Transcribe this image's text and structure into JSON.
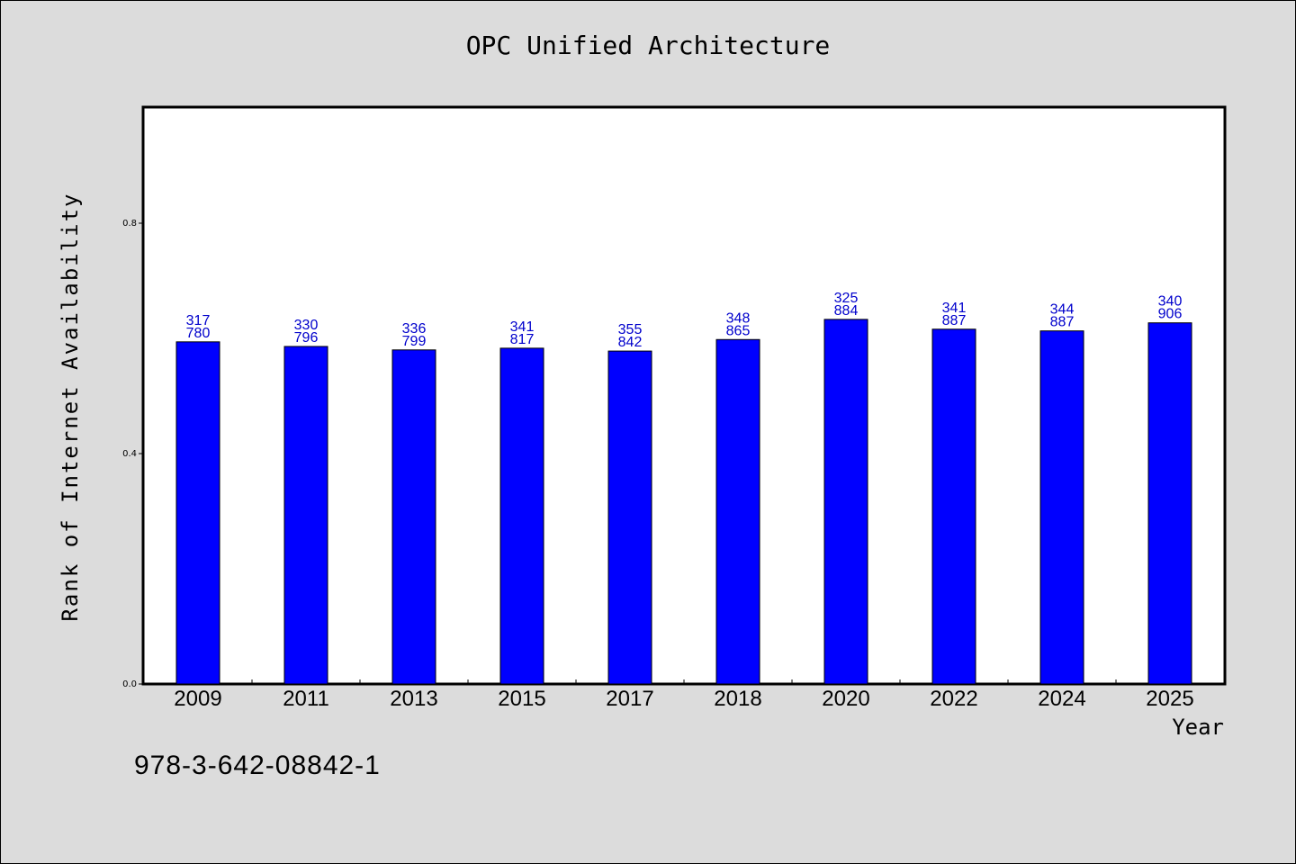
{
  "title": "OPC Unified Architecture",
  "footer_code": "978-3-642-08842-1",
  "colors": {
    "bar": "#0000ff",
    "label": "#0000cc",
    "background": "#dcdcdc",
    "plot": "#ffffff"
  },
  "chart_data": {
    "type": "bar",
    "title": "OPC Unified Architecture",
    "xlabel": "Year",
    "ylabel": "Rank of Internet Availability",
    "categories": [
      "2009",
      "2011",
      "2013",
      "2015",
      "2017",
      "2018",
      "2020",
      "2022",
      "2024",
      "2025"
    ],
    "series": [
      {
        "values": [
          0.594,
          0.586,
          0.58,
          0.583,
          0.578,
          0.598,
          0.633,
          0.616,
          0.613,
          0.627
        ],
        "labels_top": [
          "317",
          "330",
          "336",
          "341",
          "355",
          "348",
          "325",
          "341",
          "344",
          "340"
        ],
        "labels_bottom": [
          "780",
          "796",
          "799",
          "817",
          "842",
          "865",
          "884",
          "887",
          "887",
          "906"
        ]
      }
    ],
    "ylim": [
      0.0,
      1.0
    ],
    "yticks": [
      0.0,
      0.4,
      0.8
    ],
    "ytick_labels": [
      "0.0",
      "0.4",
      "0.8"
    ],
    "grid": false,
    "legend": "none"
  }
}
